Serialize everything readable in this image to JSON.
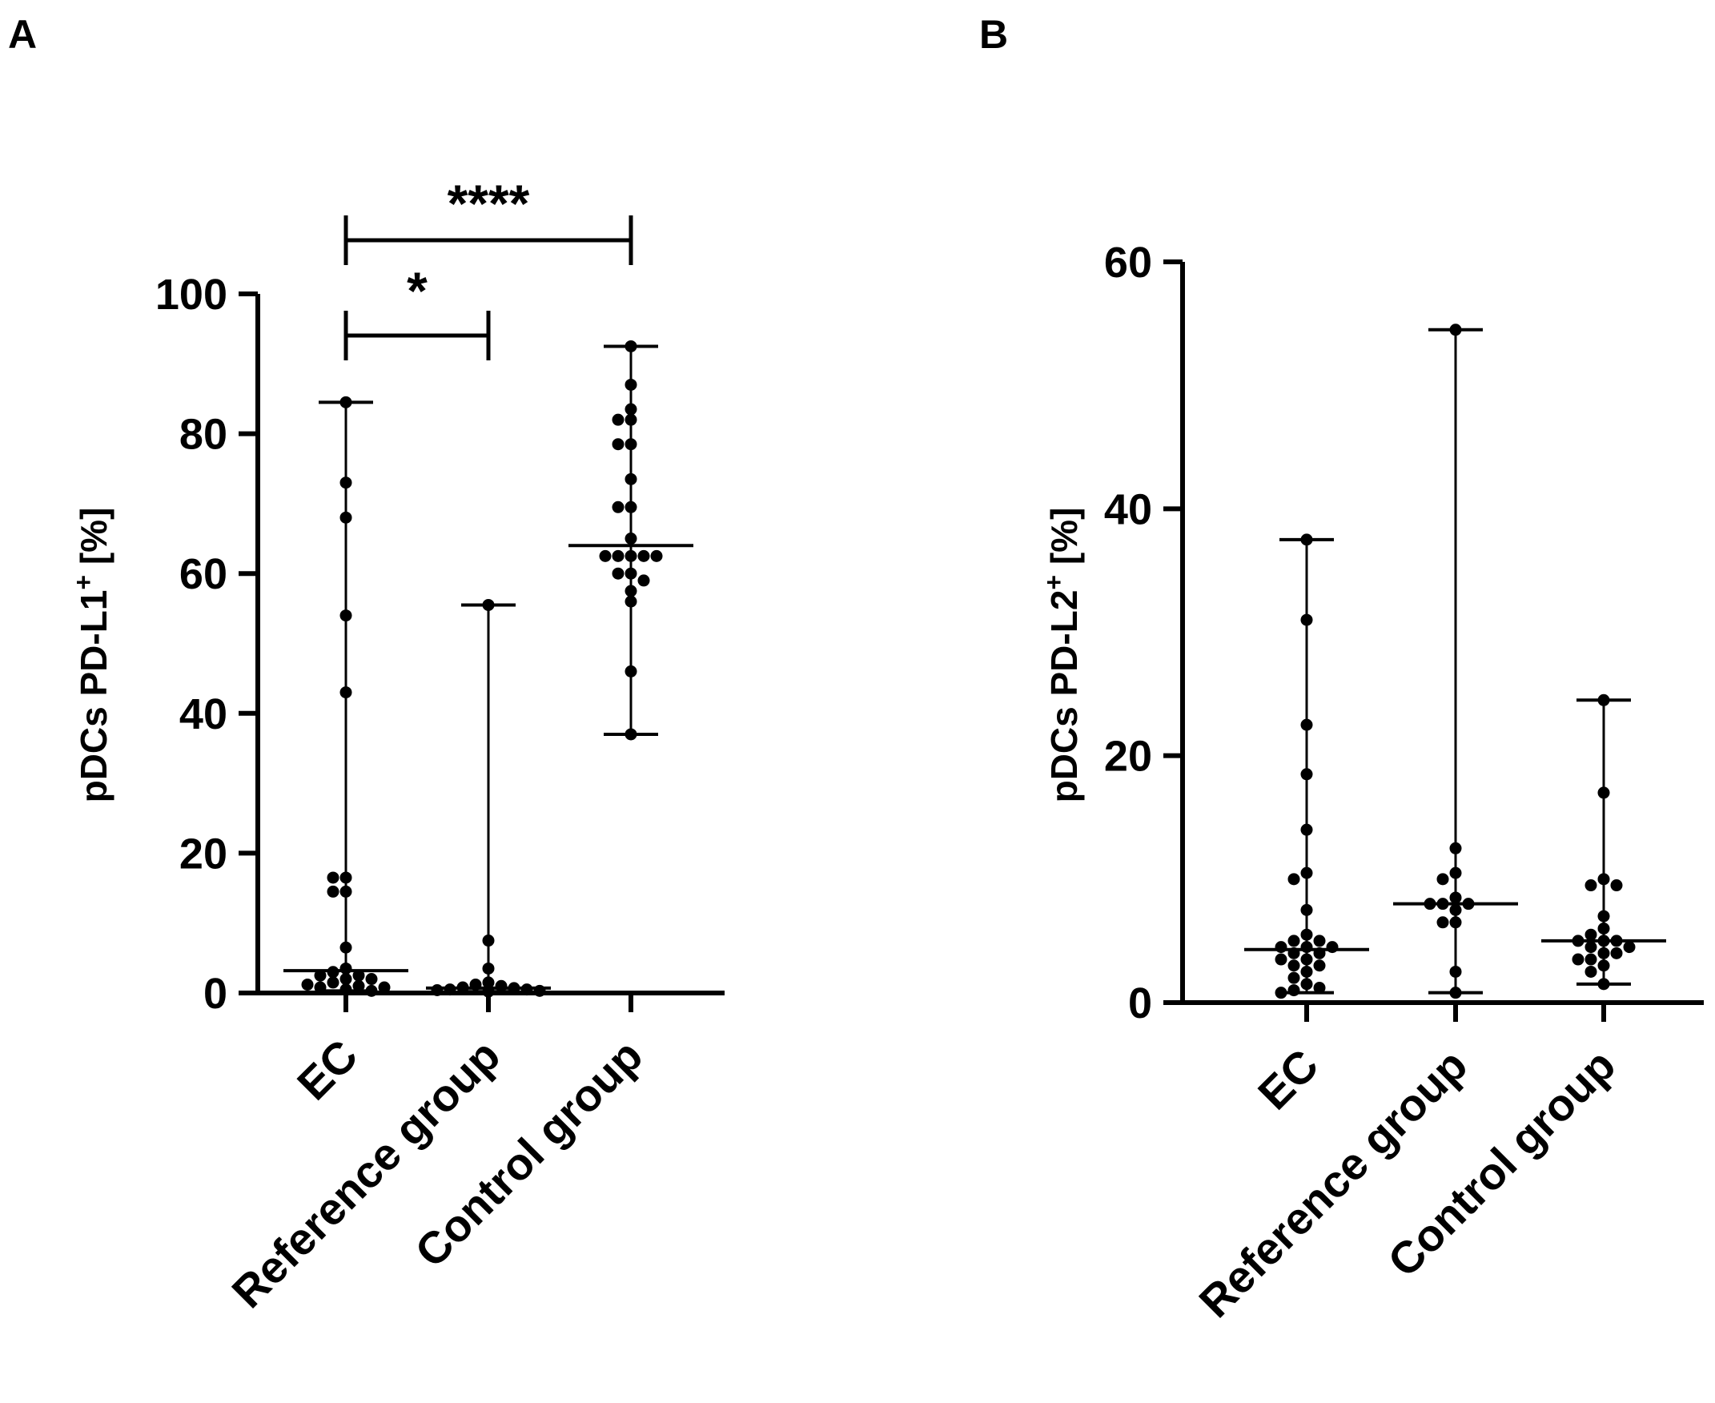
{
  "chart_data": [
    {
      "panel": "A",
      "type": "scatter",
      "subtype": "dot-plot with median and range",
      "ylabel": "pDCs PD-L1",
      "ylabel_sup": "+",
      "ylabel_suffix": " [%]",
      "ylim": [
        0,
        100
      ],
      "yticks": [
        "0",
        "20",
        "40",
        "60",
        "80",
        "100"
      ],
      "categories": [
        "EC",
        "Reference group",
        "Control group"
      ],
      "groups": [
        {
          "name": "EC",
          "median": 3.2,
          "min": 0.3,
          "max": 84.5,
          "points": [
            84.5,
            73,
            68,
            54,
            43,
            16.5,
            16.5,
            14.5,
            14.5,
            6.5,
            3.5,
            3,
            2.5,
            2.5,
            2,
            2,
            1.5,
            1.2,
            1,
            0.8,
            0.8,
            0.5,
            0.3
          ]
        },
        {
          "name": "Reference group",
          "median": 0.7,
          "min": 0.2,
          "max": 55.5,
          "points": [
            55.5,
            7.5,
            3.5,
            1.5,
            1.2,
            1,
            0.8,
            0.7,
            0.5,
            0.5,
            0.4,
            0.3,
            0.2
          ]
        },
        {
          "name": "Control group",
          "median": 64,
          "min": 37,
          "max": 92.5,
          "points": [
            92.5,
            87,
            83.5,
            82,
            82,
            78.5,
            78.5,
            73.5,
            69.5,
            69.5,
            65,
            62.5,
            62.5,
            62.5,
            62.5,
            62.5,
            60,
            60,
            59,
            57.5,
            56,
            46,
            37
          ]
        }
      ],
      "significance": [
        {
          "from": "EC",
          "to": "Reference group",
          "label": "*"
        },
        {
          "from": "EC",
          "to": "Control group",
          "label": "****"
        }
      ]
    },
    {
      "panel": "B",
      "type": "scatter",
      "subtype": "dot-plot with median and range",
      "ylabel": "pDCs PD-L2",
      "ylabel_sup": "+",
      "ylabel_suffix": " [%]",
      "ylim": [
        0,
        60
      ],
      "yticks": [
        "0",
        "20",
        "40",
        "60"
      ],
      "categories": [
        "EC",
        "Reference group",
        "Control group"
      ],
      "groups": [
        {
          "name": "EC",
          "median": 4.3,
          "min": 0.8,
          "max": 37.5,
          "points": [
            37.5,
            31,
            22.5,
            18.5,
            14,
            10.5,
            10,
            7.5,
            5.5,
            5,
            5,
            4.5,
            4.5,
            4.5,
            4,
            4,
            3.5,
            3.5,
            3,
            3,
            2.5,
            2,
            1.5,
            1.2,
            1,
            0.8
          ]
        },
        {
          "name": "Reference group",
          "median": 8,
          "min": 0.8,
          "max": 54.5,
          "points": [
            54.5,
            12.5,
            10.5,
            10,
            8.5,
            8,
            8,
            8,
            7.5,
            6.5,
            6.5,
            2.5,
            0.8
          ]
        },
        {
          "name": "Control group",
          "median": 5,
          "min": 1.5,
          "max": 24.5,
          "points": [
            24.5,
            17,
            10,
            9.5,
            9.5,
            7,
            6,
            5.5,
            5,
            5,
            5,
            4.5,
            4.5,
            4,
            4,
            3.5,
            3.5,
            3,
            2.5,
            1.5
          ]
        }
      ],
      "significance": []
    }
  ]
}
